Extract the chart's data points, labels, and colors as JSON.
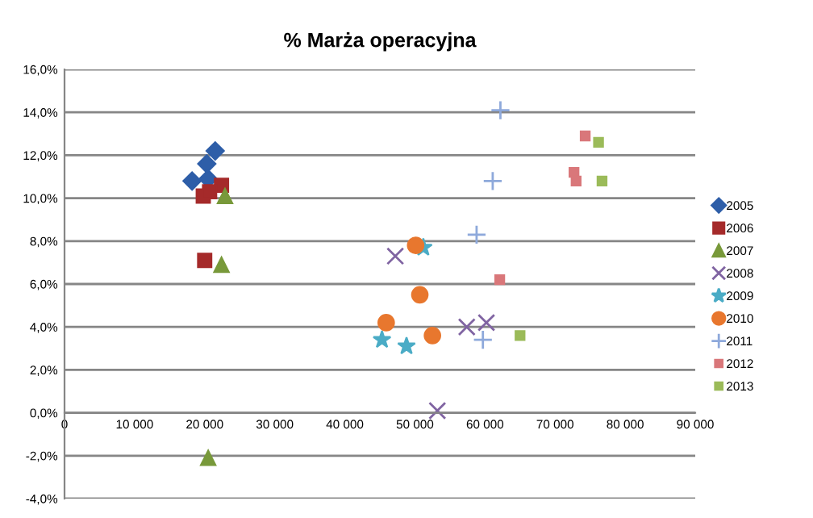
{
  "chart_data": {
    "type": "scatter",
    "title": "% Marża operacyjna",
    "xlim": [
      0,
      90000
    ],
    "xticks": [
      {
        "value": 0,
        "label": "0"
      },
      {
        "value": 10000,
        "label": "10 000"
      },
      {
        "value": 20000,
        "label": "20 000"
      },
      {
        "value": 30000,
        "label": "30 000"
      },
      {
        "value": 40000,
        "label": "40 000"
      },
      {
        "value": 50000,
        "label": "50 000"
      },
      {
        "value": 60000,
        "label": "60 000"
      },
      {
        "value": 70000,
        "label": "70 000"
      },
      {
        "value": 80000,
        "label": "80 000"
      },
      {
        "value": 90000,
        "label": "90 000"
      }
    ],
    "ylim": [
      -4,
      16
    ],
    "yticks": [
      {
        "value": -4,
        "label": "-4,0%"
      },
      {
        "value": -2,
        "label": "-2,0%"
      },
      {
        "value": 0,
        "label": "0,0%"
      },
      {
        "value": 2,
        "label": "2,0%"
      },
      {
        "value": 4,
        "label": "4,0%"
      },
      {
        "value": 6,
        "label": "6,0%"
      },
      {
        "value": 8,
        "label": "8,0%"
      },
      {
        "value": 10,
        "label": "10,0%"
      },
      {
        "value": 12,
        "label": "12,0%"
      },
      {
        "value": 14,
        "label": "14,0%"
      },
      {
        "value": 16,
        "label": "16,0%"
      }
    ],
    "grid": "y",
    "legend": "right",
    "series": [
      {
        "name": "2005",
        "color": "#2e5ea8",
        "marker": "diamond",
        "x": [
          21500,
          20300,
          18200,
          20500
        ],
        "values": [
          12.2,
          11.6,
          10.8,
          10.9
        ]
      },
      {
        "name": "2006",
        "color": "#a52a2a",
        "marker": "square",
        "x": [
          19800,
          22400,
          20700,
          20000
        ],
        "values": [
          10.1,
          10.6,
          10.3,
          7.1
        ]
      },
      {
        "name": "2007",
        "color": "#78993a",
        "marker": "triangle",
        "x": [
          22900,
          22400,
          20500
        ],
        "values": [
          10.1,
          6.9,
          -2.1
        ]
      },
      {
        "name": "2008",
        "color": "#8064a2",
        "marker": "cross",
        "x": [
          47200,
          57400,
          60200,
          53200
        ],
        "values": [
          7.3,
          4.0,
          4.2,
          0.1
        ]
      },
      {
        "name": "2009",
        "color": "#4bacc6",
        "marker": "star",
        "x": [
          51200,
          45300,
          48800
        ],
        "values": [
          7.7,
          3.4,
          3.1
        ]
      },
      {
        "name": "2010",
        "color": "#e8772e",
        "marker": "circle",
        "x": [
          50100,
          50700,
          45900,
          52500
        ],
        "values": [
          7.8,
          5.5,
          4.2,
          3.6
        ]
      },
      {
        "name": "2011",
        "color": "#8ea9db",
        "marker": "plus",
        "x": [
          62200,
          61100,
          58800,
          59700
        ],
        "values": [
          14.1,
          10.8,
          8.3,
          3.4
        ]
      },
      {
        "name": "2012",
        "color": "#d9777a",
        "marker": "square",
        "x": [
          62100,
          74300,
          72700,
          73000
        ],
        "values": [
          6.2,
          12.9,
          11.2,
          10.8
        ]
      },
      {
        "name": "2013",
        "color": "#9bbb59",
        "marker": "square",
        "x": [
          65000,
          76200,
          76700
        ],
        "values": [
          3.6,
          12.6,
          10.8
        ]
      }
    ]
  }
}
